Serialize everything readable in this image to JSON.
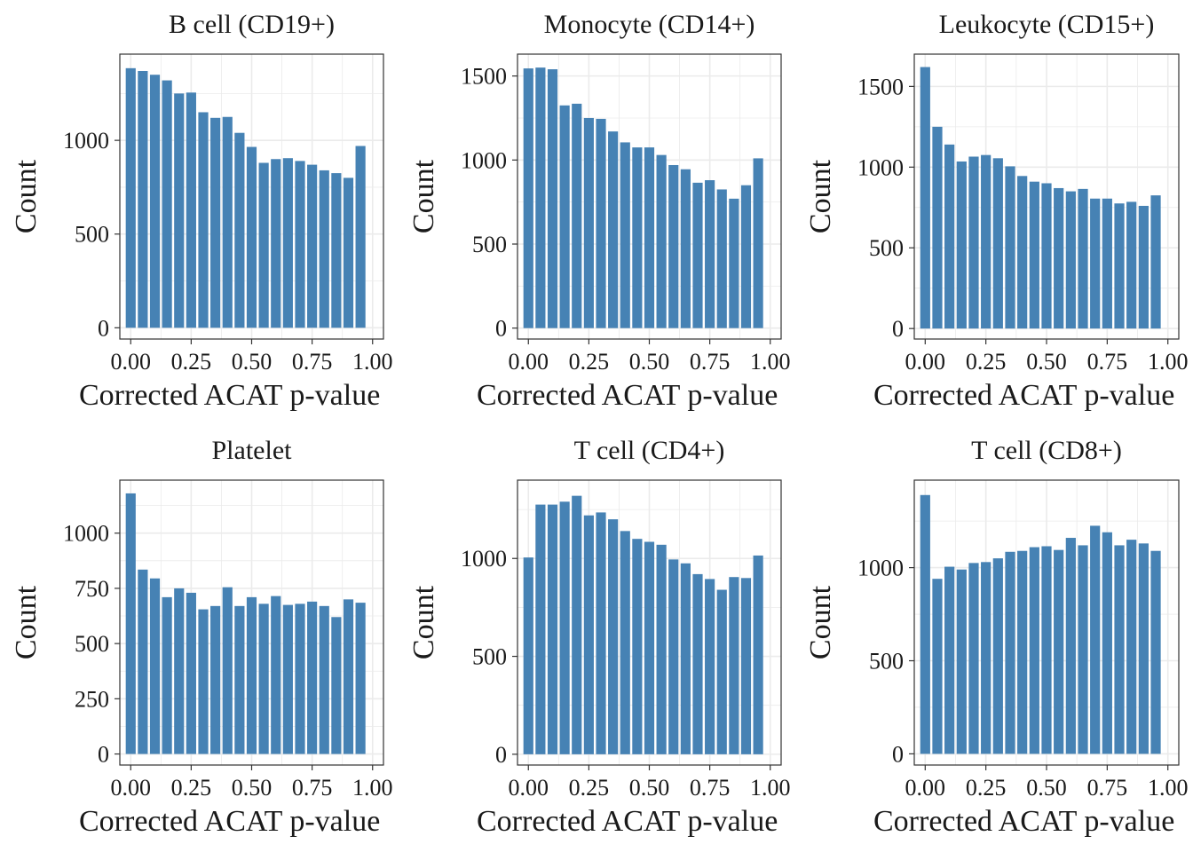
{
  "colors": {
    "bar": "#4682B4",
    "grid": "#EBEBEB",
    "panel_border": "#333333",
    "background": "#FFFFFF"
  },
  "chart_data": [
    {
      "type": "bar",
      "title": "B cell (CD19+)",
      "xlabel": "Corrected ACAT p-value",
      "ylabel": "Count",
      "x": [
        0.0,
        0.05,
        0.1,
        0.15,
        0.2,
        0.25,
        0.3,
        0.35,
        0.4,
        0.45,
        0.5,
        0.55,
        0.6,
        0.65,
        0.7,
        0.75,
        0.8,
        0.85,
        0.9,
        0.95
      ],
      "values": [
        1385,
        1370,
        1350,
        1320,
        1250,
        1255,
        1150,
        1120,
        1125,
        1040,
        965,
        880,
        900,
        905,
        890,
        870,
        840,
        825,
        800,
        970
      ],
      "xlim": [
        -0.045,
        1.045
      ],
      "ylim": [
        -60,
        1460
      ],
      "xticks": [
        0,
        0.25,
        0.5,
        0.75,
        1
      ],
      "xtick_labels": [
        "0.00",
        "0.25",
        "0.50",
        "0.75",
        "1.00"
      ],
      "yticks": [
        0,
        500,
        1000
      ],
      "ytick_labels": [
        "0",
        "500",
        "1000"
      ],
      "grid": true,
      "legend": "none"
    },
    {
      "type": "bar",
      "title": "Monocyte (CD14+)",
      "xlabel": "Corrected ACAT p-value",
      "ylabel": "Count",
      "x": [
        0.0,
        0.05,
        0.1,
        0.15,
        0.2,
        0.25,
        0.3,
        0.35,
        0.4,
        0.45,
        0.5,
        0.55,
        0.6,
        0.65,
        0.7,
        0.75,
        0.8,
        0.85,
        0.9,
        0.95
      ],
      "values": [
        1545,
        1550,
        1540,
        1325,
        1335,
        1250,
        1245,
        1170,
        1105,
        1075,
        1075,
        1030,
        970,
        945,
        865,
        880,
        825,
        770,
        850,
        1010
      ],
      "xlim": [
        -0.045,
        1.045
      ],
      "ylim": [
        -65,
        1630
      ],
      "xticks": [
        0,
        0.25,
        0.5,
        0.75,
        1
      ],
      "xtick_labels": [
        "0.00",
        "0.25",
        "0.50",
        "0.75",
        "1.00"
      ],
      "yticks": [
        0,
        500,
        1000,
        1500
      ],
      "ytick_labels": [
        "0",
        "500",
        "1000",
        "1500"
      ],
      "grid": true,
      "legend": "none"
    },
    {
      "type": "bar",
      "title": "Leukocyte (CD15+)",
      "xlabel": "Corrected ACAT p-value",
      "ylabel": "Count",
      "x": [
        0.0,
        0.05,
        0.1,
        0.15,
        0.2,
        0.25,
        0.3,
        0.35,
        0.4,
        0.45,
        0.5,
        0.55,
        0.6,
        0.65,
        0.7,
        0.75,
        0.8,
        0.85,
        0.9,
        0.95
      ],
      "values": [
        1620,
        1250,
        1140,
        1035,
        1065,
        1075,
        1055,
        1005,
        945,
        910,
        900,
        870,
        850,
        865,
        805,
        805,
        775,
        785,
        760,
        825
      ],
      "xlim": [
        -0.045,
        1.045
      ],
      "ylim": [
        -65,
        1700
      ],
      "xticks": [
        0,
        0.25,
        0.5,
        0.75,
        1
      ],
      "xtick_labels": [
        "0.00",
        "0.25",
        "0.50",
        "0.75",
        "1.00"
      ],
      "yticks": [
        0,
        500,
        1000,
        1500
      ],
      "ytick_labels": [
        "0",
        "500",
        "1000",
        "1500"
      ],
      "grid": true,
      "legend": "none"
    },
    {
      "type": "bar",
      "title": "Platelet",
      "xlabel": "Corrected ACAT p-value",
      "ylabel": "Count",
      "x": [
        0.0,
        0.05,
        0.1,
        0.15,
        0.2,
        0.25,
        0.3,
        0.35,
        0.4,
        0.45,
        0.5,
        0.55,
        0.6,
        0.65,
        0.7,
        0.75,
        0.8,
        0.85,
        0.9,
        0.95
      ],
      "values": [
        1180,
        835,
        795,
        710,
        750,
        730,
        655,
        670,
        755,
        670,
        710,
        680,
        715,
        675,
        680,
        690,
        670,
        620,
        700,
        685
      ],
      "xlim": [
        -0.045,
        1.045
      ],
      "ylim": [
        -50,
        1240
      ],
      "xticks": [
        0,
        0.25,
        0.5,
        0.75,
        1
      ],
      "xtick_labels": [
        "0.00",
        "0.25",
        "0.50",
        "0.75",
        "1.00"
      ],
      "yticks": [
        0,
        250,
        500,
        750,
        1000
      ],
      "ytick_labels": [
        "0",
        "250",
        "500",
        "750",
        "1000"
      ],
      "grid": true,
      "legend": "none"
    },
    {
      "type": "bar",
      "title": "T cell (CD4+)",
      "xlabel": "Corrected ACAT p-value",
      "ylabel": "Count",
      "x": [
        0.0,
        0.05,
        0.1,
        0.15,
        0.2,
        0.25,
        0.3,
        0.35,
        0.4,
        0.45,
        0.5,
        0.55,
        0.6,
        0.65,
        0.7,
        0.75,
        0.8,
        0.85,
        0.9,
        0.95
      ],
      "values": [
        1005,
        1275,
        1275,
        1290,
        1320,
        1220,
        1235,
        1200,
        1140,
        1100,
        1085,
        1070,
        995,
        975,
        920,
        895,
        840,
        905,
        900,
        1015
      ],
      "xlim": [
        -0.045,
        1.045
      ],
      "ylim": [
        -55,
        1400
      ],
      "xticks": [
        0,
        0.25,
        0.5,
        0.75,
        1
      ],
      "xtick_labels": [
        "0.00",
        "0.25",
        "0.50",
        "0.75",
        "1.00"
      ],
      "yticks": [
        0,
        500,
        1000
      ],
      "ytick_labels": [
        "0",
        "500",
        "1000"
      ],
      "grid": true,
      "legend": "none"
    },
    {
      "type": "bar",
      "title": "T cell (CD8+)",
      "xlabel": "Corrected ACAT p-value",
      "ylabel": "Count",
      "x": [
        0.0,
        0.05,
        0.1,
        0.15,
        0.2,
        0.25,
        0.3,
        0.35,
        0.4,
        0.45,
        0.5,
        0.55,
        0.6,
        0.65,
        0.7,
        0.75,
        0.8,
        0.85,
        0.9,
        0.95
      ],
      "values": [
        1390,
        940,
        1005,
        990,
        1025,
        1030,
        1050,
        1085,
        1090,
        1110,
        1115,
        1095,
        1160,
        1120,
        1225,
        1190,
        1120,
        1150,
        1130,
        1090
      ],
      "xlim": [
        -0.045,
        1.045
      ],
      "ylim": [
        -60,
        1470
      ],
      "xticks": [
        0,
        0.25,
        0.5,
        0.75,
        1
      ],
      "xtick_labels": [
        "0.00",
        "0.25",
        "0.50",
        "0.75",
        "1.00"
      ],
      "yticks": [
        0,
        500,
        1000
      ],
      "ytick_labels": [
        "0",
        "500",
        "1000"
      ],
      "grid": true,
      "legend": "none"
    }
  ]
}
